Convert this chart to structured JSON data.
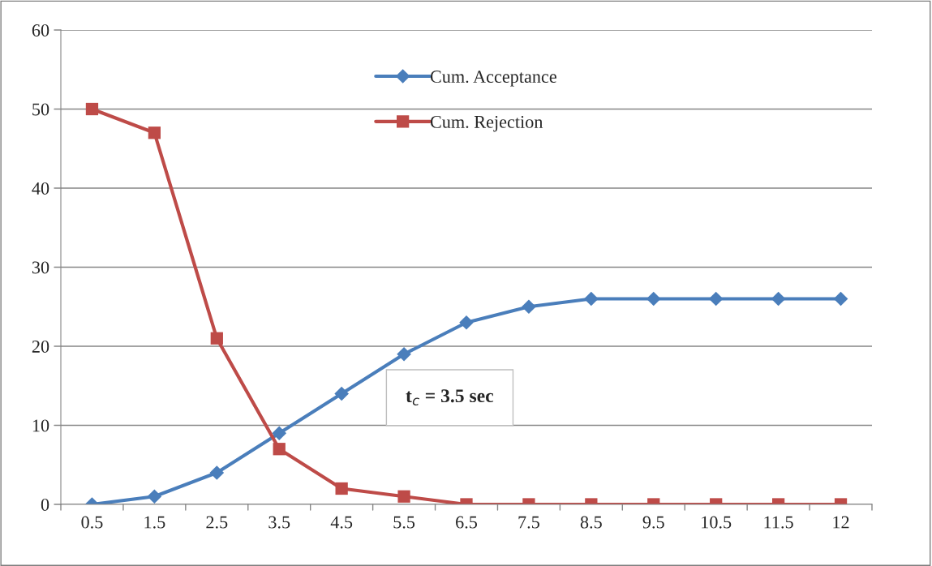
{
  "chart_data": {
    "type": "line",
    "categories": [
      "0.5",
      "1.5",
      "2.5",
      "3.5",
      "4.5",
      "5.5",
      "6.5",
      "7.5",
      "8.5",
      "9.5",
      "10.5",
      "11.5",
      "12"
    ],
    "series": [
      {
        "name": "Cum. Acceptance",
        "color": "#4a7ebb",
        "marker": "diamond",
        "values": [
          0,
          1,
          4,
          9,
          14,
          19,
          23,
          25,
          26,
          26,
          26,
          26,
          26
        ]
      },
      {
        "name": "Cum. Rejection",
        "color": "#be4b48",
        "marker": "square",
        "values": [
          50,
          47,
          21,
          7,
          2,
          1,
          0,
          0,
          0,
          0,
          0,
          0,
          0
        ]
      }
    ],
    "ylim": [
      0,
      60
    ],
    "yticks": [
      0,
      10,
      20,
      30,
      40,
      50,
      60
    ],
    "grid": "y",
    "legend": "top",
    "annotations": [
      "t$_{c}$ = 3.5 sec"
    ]
  }
}
